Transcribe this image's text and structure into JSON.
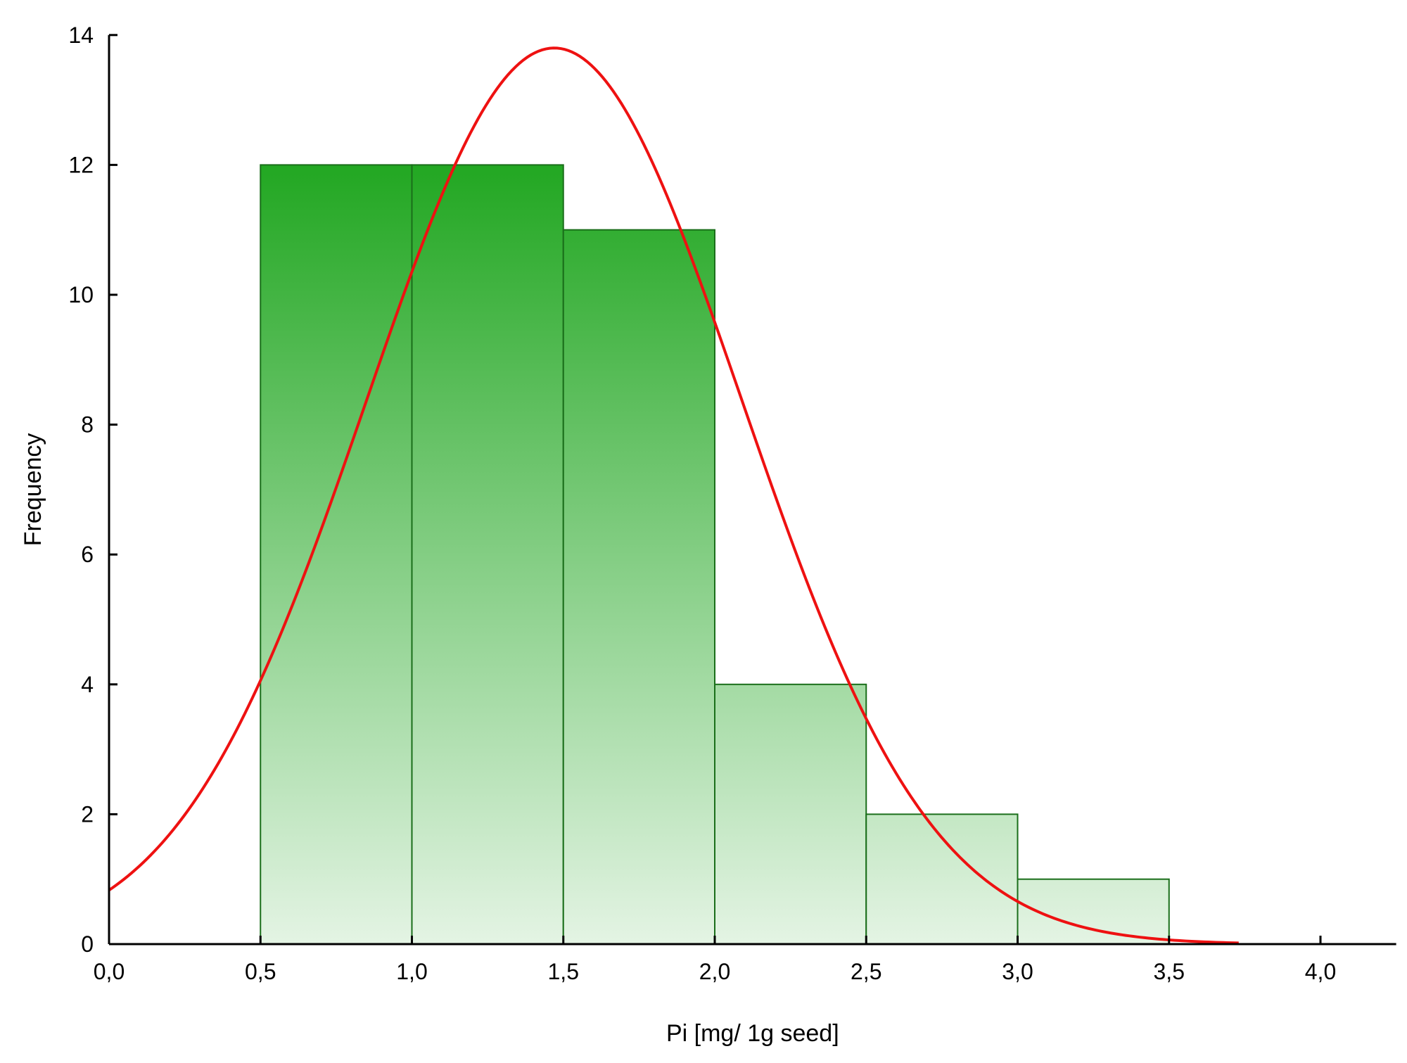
{
  "chart_data": {
    "type": "bar",
    "subtype": "histogram-with-normal-fit",
    "title": "",
    "xlabel": "Pi [mg/ 1g seed]",
    "ylabel": "Frequency",
    "xlim": [
      0.0,
      4.25
    ],
    "ylim": [
      0,
      14
    ],
    "x_ticks": [
      0.0,
      0.5,
      1.0,
      1.5,
      2.0,
      2.5,
      3.0,
      3.5,
      4.0
    ],
    "x_tick_labels": [
      "0,0",
      "0,5",
      "1,0",
      "1,5",
      "2,0",
      "2,5",
      "3,0",
      "3,5",
      "4,0"
    ],
    "y_ticks": [
      0,
      2,
      4,
      6,
      8,
      10,
      12,
      14
    ],
    "y_tick_labels": [
      "0",
      "2",
      "4",
      "6",
      "8",
      "10",
      "12",
      "14"
    ],
    "bins": [
      {
        "start": 0.5,
        "end": 1.0,
        "count": 12
      },
      {
        "start": 1.0,
        "end": 1.5,
        "count": 12
      },
      {
        "start": 1.5,
        "end": 2.0,
        "count": 11
      },
      {
        "start": 2.0,
        "end": 2.5,
        "count": 4
      },
      {
        "start": 2.5,
        "end": 3.0,
        "count": 2
      },
      {
        "start": 3.0,
        "end": 3.5,
        "count": 1
      }
    ],
    "fit_curve": {
      "type": "normal",
      "mean": 1.47,
      "peak": 13.8,
      "x_range": [
        0.0,
        3.73
      ],
      "points": [
        [
          0.0,
          0.75
        ],
        [
          0.25,
          1.8
        ],
        [
          0.5,
          3.9
        ],
        [
          0.75,
          6.8
        ],
        [
          1.0,
          10.1
        ],
        [
          1.25,
          12.7
        ],
        [
          1.47,
          13.8
        ],
        [
          1.75,
          12.0
        ],
        [
          2.0,
          9.4
        ],
        [
          2.25,
          6.0
        ],
        [
          2.5,
          3.4
        ],
        [
          2.75,
          1.6
        ],
        [
          3.0,
          0.6
        ],
        [
          3.25,
          0.22
        ],
        [
          3.5,
          0.06
        ],
        [
          3.73,
          0.02
        ]
      ],
      "sigma_estimate": 0.62
    },
    "grid": false,
    "legend": "none",
    "colors": {
      "bar_top": "#22a722",
      "bar_bottom": "#e4f4e4",
      "bar_border": "#1a6e1a",
      "curve": "#ee1111",
      "axis": "#000000"
    }
  }
}
